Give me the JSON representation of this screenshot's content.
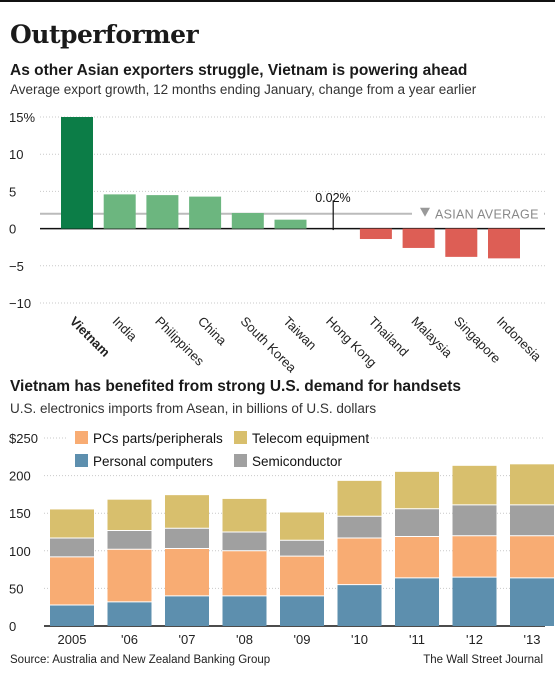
{
  "header": {
    "title": "Outperformer",
    "chart1_title": "As other Asian exporters struggle, Vietnam is powering ahead",
    "chart1_subtitle": "Average export growth, 12 months ending January, change from a year earlier",
    "chart2_title": "Vietnam has benefited from strong U.S. demand for handsets",
    "chart2_subtitle": "U.S. electronics imports from Asean, in billions of U.S. dollars"
  },
  "footer": {
    "source": "Source: Australia and New Zealand Banking Group",
    "credit": "The Wall Street Journal"
  },
  "colors": {
    "vietnam": "#0c7d47",
    "positive": "#6cb67f",
    "negative": "#dd5e55",
    "average_line": "#bbbbbb",
    "pcs_parts": "#f8ac73",
    "telecom": "#d8bf6d",
    "personal_computers": "#5d8fae",
    "semiconductor": "#a0a0a0"
  },
  "chart_data": [
    {
      "type": "bar",
      "categories": [
        "Vietnam",
        "India",
        "Philippines",
        "China",
        "South Korea",
        "Taiwan",
        "Hong Kong",
        "Thailand",
        "Malaysia",
        "Singapore",
        "Indonesia"
      ],
      "values": [
        15,
        4.6,
        4.5,
        4.3,
        2.1,
        1.2,
        0.02,
        -1.4,
        -2.6,
        -3.8,
        -4.0
      ],
      "ylim": [
        -10,
        15
      ],
      "yticks": [
        "15%",
        "10",
        "5",
        "0",
        "−5",
        "−10"
      ],
      "ytick_values": [
        15,
        10,
        5,
        0,
        -5,
        -10
      ],
      "annotation": "0.02%",
      "reference_line": {
        "label": "ASIAN AVERAGE",
        "value": 2
      }
    },
    {
      "type": "bar",
      "stacked": true,
      "categories": [
        "2005",
        "'06",
        "'07",
        "'08",
        "'09",
        "'10",
        "'11",
        "'12",
        "'13"
      ],
      "ylim": [
        0,
        250
      ],
      "yticks": [
        "$250",
        "200",
        "150",
        "100",
        "50",
        "0"
      ],
      "ytick_values": [
        250,
        200,
        150,
        100,
        50,
        0
      ],
      "series": [
        {
          "name": "Personal computers",
          "color_key": "personal_computers",
          "values": [
            28,
            32,
            40,
            40,
            40,
            55,
            64,
            65,
            64
          ]
        },
        {
          "name": "PCs parts/peripherals",
          "color_key": "pcs_parts",
          "values": [
            64,
            70,
            63,
            60,
            53,
            62,
            55,
            55,
            56
          ]
        },
        {
          "name": "Semiconductor",
          "color_key": "semiconductor",
          "values": [
            25,
            25,
            27,
            25,
            21,
            29,
            37,
            41,
            41
          ]
        },
        {
          "name": "Telecom equipment",
          "color_key": "telecom",
          "values": [
            38,
            41,
            44,
            44,
            37,
            47,
            49,
            52,
            54
          ]
        }
      ],
      "legend": [
        {
          "name": "PCs parts/peripherals",
          "color_key": "pcs_parts"
        },
        {
          "name": "Telecom equipment",
          "color_key": "telecom"
        },
        {
          "name": "Personal computers",
          "color_key": "personal_computers"
        },
        {
          "name": "Semiconductor",
          "color_key": "semiconductor"
        }
      ]
    }
  ]
}
